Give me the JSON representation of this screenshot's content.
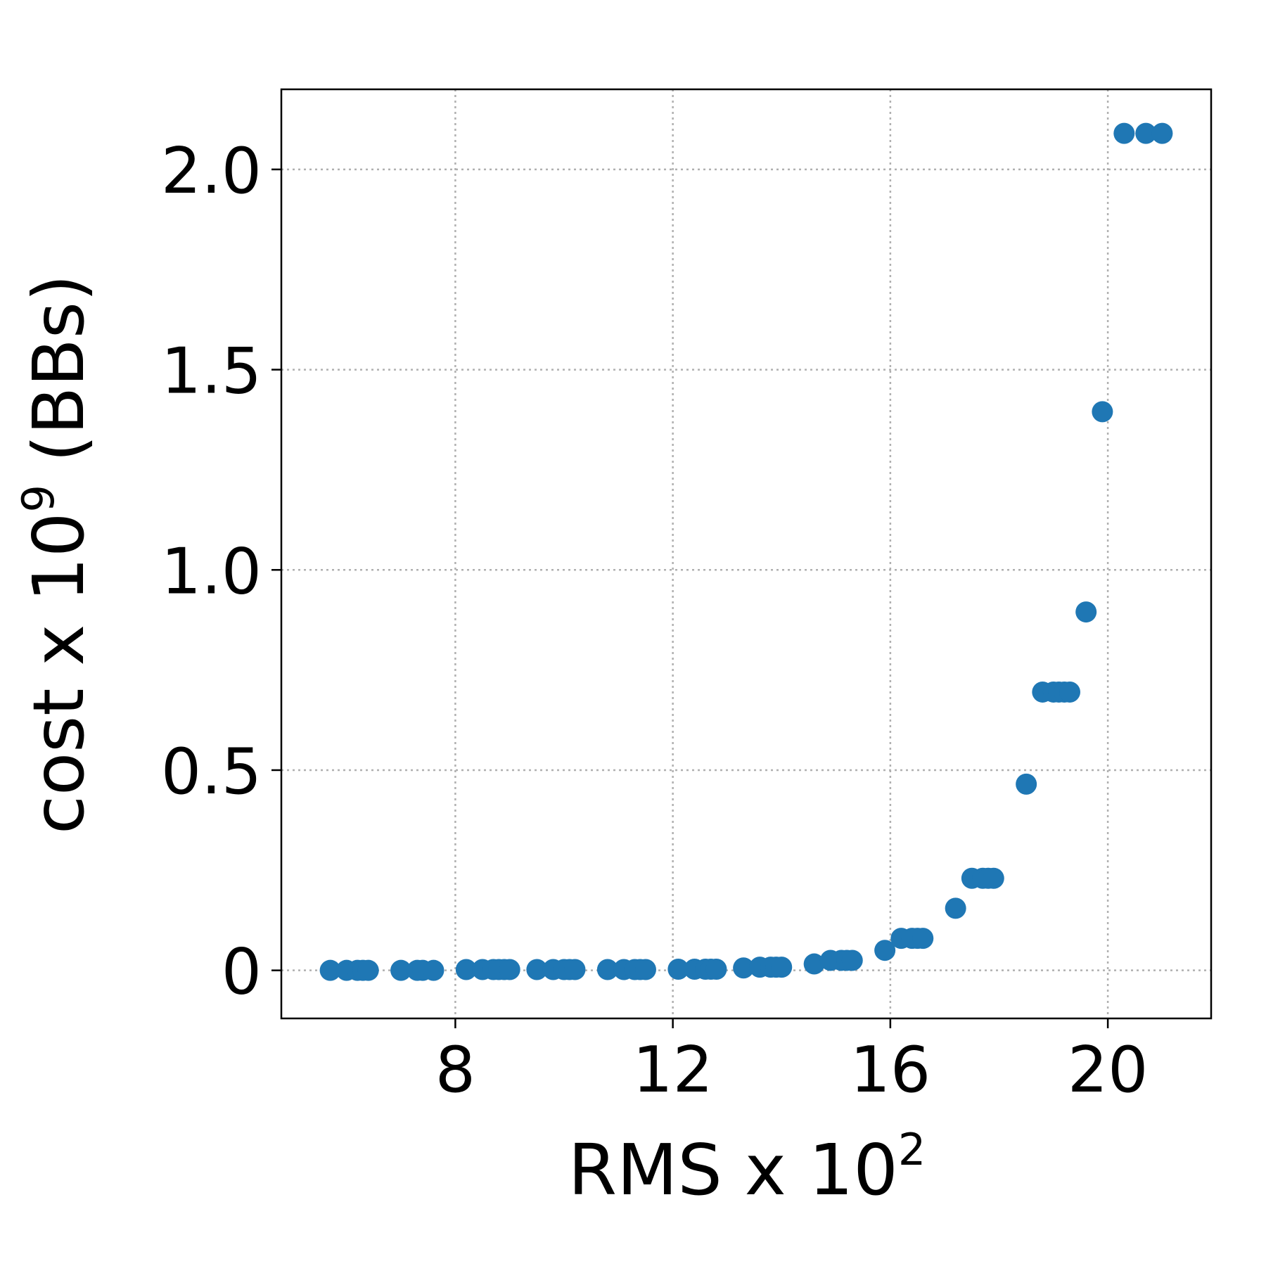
{
  "chart_data": {
    "type": "scatter",
    "xlabel": {
      "base": "RMS x 10",
      "exponent": "2"
    },
    "ylabel": {
      "base": "cost x 10",
      "exponent": "9",
      "suffix": " (BBs)"
    },
    "xlim": [
      4.8,
      21.9
    ],
    "ylim": [
      -0.12,
      2.2
    ],
    "x_ticks": [
      {
        "value": 8,
        "label": "8"
      },
      {
        "value": 12,
        "label": "12"
      },
      {
        "value": 16,
        "label": "16"
      },
      {
        "value": 20,
        "label": "20"
      }
    ],
    "y_ticks": [
      {
        "value": 0,
        "label": "0"
      },
      {
        "value": 0.5,
        "label": "0.5"
      },
      {
        "value": 1.0,
        "label": "1.0"
      },
      {
        "value": 1.5,
        "label": "1.5"
      },
      {
        "value": 2.0,
        "label": "2.0"
      }
    ],
    "grid": true,
    "marker_color": "#1f77b4",
    "series": [
      {
        "x": [
          5.7,
          6.0,
          6.2,
          6.3,
          6.4,
          7.0,
          7.3,
          7.4,
          7.6,
          8.2,
          8.5,
          8.7,
          8.8,
          8.9,
          9.0,
          9.5,
          9.8,
          10.0,
          10.1,
          10.2,
          10.8,
          11.1,
          11.3,
          11.4,
          11.5,
          12.1,
          12.4,
          12.6,
          12.7,
          12.8,
          13.3,
          13.6,
          13.8,
          13.9,
          14.0,
          14.6,
          14.9,
          15.1,
          15.2,
          15.3,
          15.9,
          16.2,
          16.4,
          16.5,
          16.6,
          17.2,
          17.5,
          17.7,
          17.8,
          17.9,
          18.5,
          18.8,
          19.0,
          19.1,
          19.2,
          19.3,
          19.6,
          19.9,
          20.3,
          20.7,
          21.0
        ],
        "y": [
          0.0,
          0.0,
          0.0,
          0.0,
          0.0,
          0.0,
          0.0,
          0.0,
          0.0,
          0.002,
          0.002,
          0.002,
          0.002,
          0.002,
          0.002,
          0.002,
          0.002,
          0.002,
          0.002,
          0.002,
          0.002,
          0.002,
          0.002,
          0.002,
          0.002,
          0.003,
          0.003,
          0.003,
          0.003,
          0.003,
          0.006,
          0.008,
          0.008,
          0.008,
          0.008,
          0.016,
          0.025,
          0.025,
          0.025,
          0.025,
          0.05,
          0.08,
          0.08,
          0.08,
          0.08,
          0.155,
          0.23,
          0.23,
          0.23,
          0.23,
          0.465,
          0.695,
          0.695,
          0.695,
          0.695,
          0.695,
          0.895,
          1.395,
          2.09,
          2.09,
          2.09
        ]
      }
    ]
  }
}
